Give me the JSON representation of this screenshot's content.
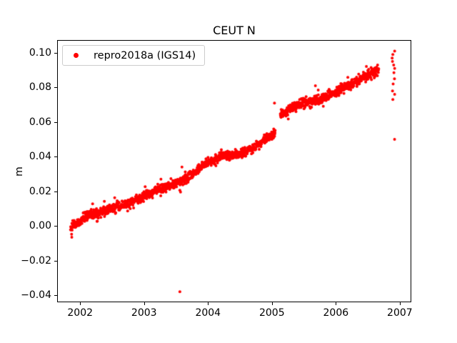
{
  "chart_data": {
    "type": "scatter",
    "title": "CEUT N",
    "xlabel": "",
    "ylabel": "m",
    "grid": false,
    "background": "#ffffff",
    "point_color": "#ff0000",
    "xlim": [
      2001.64,
      2007.18
    ],
    "ylim": [
      -0.0441,
      0.1074
    ],
    "x_ticks": {
      "values": [
        2002,
        2003,
        2004,
        2005,
        2006,
        2007
      ],
      "labels": [
        "2002",
        "2003",
        "2004",
        "2005",
        "2006",
        "2007"
      ]
    },
    "y_ticks": {
      "values": [
        0.1,
        0.08,
        0.06,
        0.04,
        0.02,
        0.0,
        -0.02,
        -0.04
      ],
      "labels": [
        "0.10",
        "0.08",
        "0.06",
        "0.04",
        "0.02",
        "0.00",
        "−0.02",
        "−0.04"
      ]
    },
    "legend": {
      "position": "upper left",
      "entries": [
        {
          "label": "repro2018a (IGS14)",
          "color": "#ff0000",
          "marker": "point"
        }
      ]
    },
    "series": [
      {
        "name": "repro2018a (IGS14)",
        "color": "#ff0000",
        "marker_radius_px": 2,
        "samples_per_year": 365,
        "noise_sd": 0.0013,
        "spike_fraction": 0.05,
        "spike_mult": 2.3,
        "x_range": [
          2001.85,
          2006.67
        ],
        "gaps": [
          [
            2005.05,
            2005.13
          ]
        ],
        "trend_anchors": [
          [
            2001.85,
            -0.001
          ],
          [
            2002.0,
            0.003
          ],
          [
            2002.1,
            0.006
          ],
          [
            2002.3,
            0.008
          ],
          [
            2002.5,
            0.01
          ],
          [
            2002.7,
            0.012
          ],
          [
            2003.0,
            0.017
          ],
          [
            2003.3,
            0.022
          ],
          [
            2003.6,
            0.026
          ],
          [
            2003.8,
            0.031
          ],
          [
            2004.0,
            0.037
          ],
          [
            2004.2,
            0.04
          ],
          [
            2004.35,
            0.041
          ],
          [
            2004.55,
            0.042
          ],
          [
            2004.75,
            0.046
          ],
          [
            2004.95,
            0.051
          ],
          [
            2005.05,
            0.054
          ],
          [
            2005.13,
            0.064
          ],
          [
            2005.3,
            0.068
          ],
          [
            2005.5,
            0.071
          ],
          [
            2005.75,
            0.073
          ],
          [
            2006.0,
            0.077
          ],
          [
            2006.2,
            0.081
          ],
          [
            2006.4,
            0.085
          ],
          [
            2006.55,
            0.088
          ],
          [
            2006.67,
            0.091
          ]
        ],
        "outliers": [
          [
            2003.56,
            -0.038
          ],
          [
            2005.04,
            0.071
          ],
          [
            2005.68,
            0.081
          ]
        ],
        "end_cluster": {
          "x": 2006.9,
          "x_jitter": 0.02,
          "values": [
            0.101,
            0.099,
            0.097,
            0.095,
            0.093,
            0.091,
            0.0885,
            0.085,
            0.082,
            0.078,
            0.076,
            0.073,
            0.05
          ]
        }
      }
    ]
  }
}
